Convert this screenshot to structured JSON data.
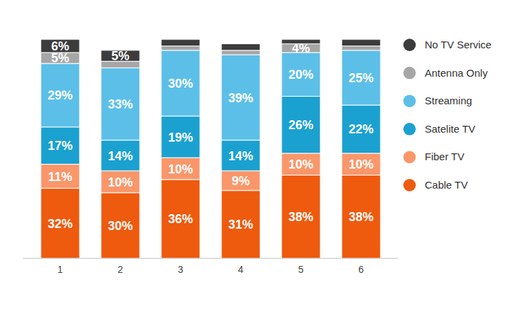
{
  "chart_data": {
    "type": "bar",
    "stacked": true,
    "data_labels": true,
    "tick_labels": "x",
    "legend": "right",
    "categories": [
      "1",
      "2",
      "3",
      "4",
      "5",
      "6"
    ],
    "ylim": [
      0,
      100
    ],
    "series": [
      {
        "name": "Cable TV",
        "color": "#ee5a0e",
        "values": [
          32,
          30,
          36,
          31,
          38,
          38
        ],
        "value_labels": [
          "32%",
          "30%",
          "36%",
          "31%",
          "38%",
          "38%"
        ]
      },
      {
        "name": "Fiber TV",
        "color": "#f9976b",
        "values": [
          11,
          10,
          10,
          9,
          10,
          10
        ],
        "value_labels": [
          "11%",
          "10%",
          "10%",
          "9%",
          "10%",
          "10%"
        ]
      },
      {
        "name": "Satelite TV",
        "color": "#1ba1d0",
        "values": [
          17,
          14,
          19,
          14,
          26,
          22
        ],
        "value_labels": [
          "17%",
          "14%",
          "19%",
          "14%",
          "26%",
          "22%"
        ]
      },
      {
        "name": "Streaming",
        "color": "#5cbfe8",
        "values": [
          29,
          33,
          30,
          39,
          20,
          25
        ],
        "value_labels": [
          "29%",
          "33%",
          "30%",
          "39%",
          "20%",
          "25%"
        ]
      },
      {
        "name": "Antenna Only",
        "color": "#a6a6a6",
        "values": [
          5,
          3,
          2,
          2,
          4,
          2
        ],
        "value_labels": [
          "5%",
          null,
          null,
          null,
          "4%",
          null
        ]
      },
      {
        "name": "No TV Service",
        "color": "#3c3c3c",
        "values": [
          6,
          5,
          3,
          3,
          2,
          3
        ],
        "value_labels": [
          "6%",
          "5%",
          null,
          null,
          null,
          null
        ]
      }
    ]
  }
}
